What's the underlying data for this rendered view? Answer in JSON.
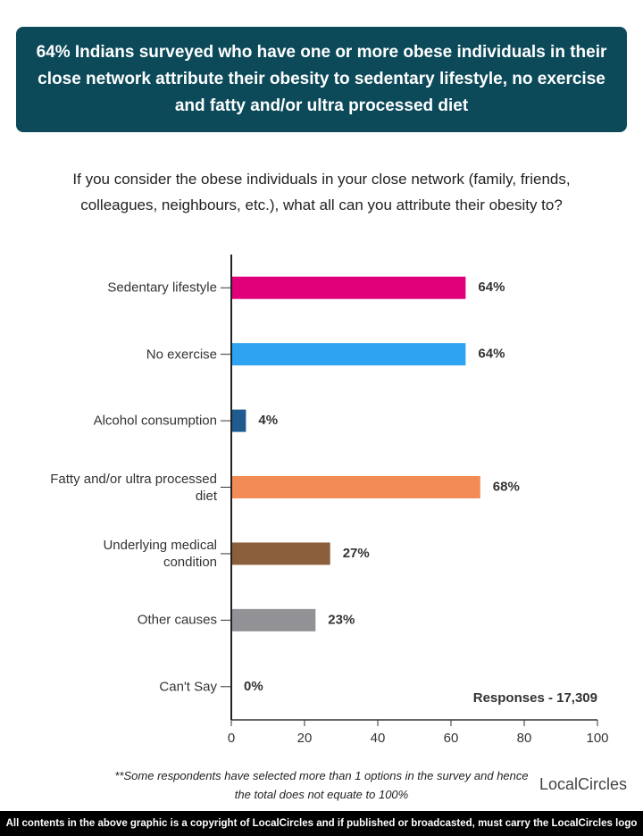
{
  "chart_data": {
    "type": "bar",
    "orientation": "horizontal",
    "title": "64% Indians surveyed who have one or more obese individuals in their close network attribute their obesity to sedentary lifestyle, no exercise and fatty and/or ultra processed diet",
    "subtitle": "If you consider the obese individuals in your close network (family, friends, colleagues, neighbours, etc.), what all can you attribute their obesity to?",
    "categories": [
      "Sedentary lifestyle",
      "No exercise",
      "Alcohol consumption",
      "Fatty and/or ultra processed\ndiet",
      "Underlying medical\ncondition",
      "Other causes",
      "Can't Say"
    ],
    "values": [
      64,
      64,
      4,
      68,
      27,
      23,
      0
    ],
    "value_labels": [
      "64%",
      "64%",
      "4%",
      "68%",
      "27%",
      "23%",
      "0%"
    ],
    "colors": [
      "#e2007a",
      "#2ea3f2",
      "#1f5b8f",
      "#f28b55",
      "#8c5f3c",
      "#929296",
      "#929296"
    ],
    "xlim": [
      0,
      100
    ],
    "xticks": [
      0,
      20,
      40,
      60,
      80,
      100
    ],
    "grid": false,
    "annotation": "Responses - 17,309",
    "footnote": "**Some respondents have selected more than 1 options in the survey and hence the total does not equate to 100%",
    "logo": "LocalCircles",
    "copyright": "All contents in the above graphic is a copyright of LocalCircles and if published or broadcasted, must carry the LocalCircles logo along with it."
  }
}
